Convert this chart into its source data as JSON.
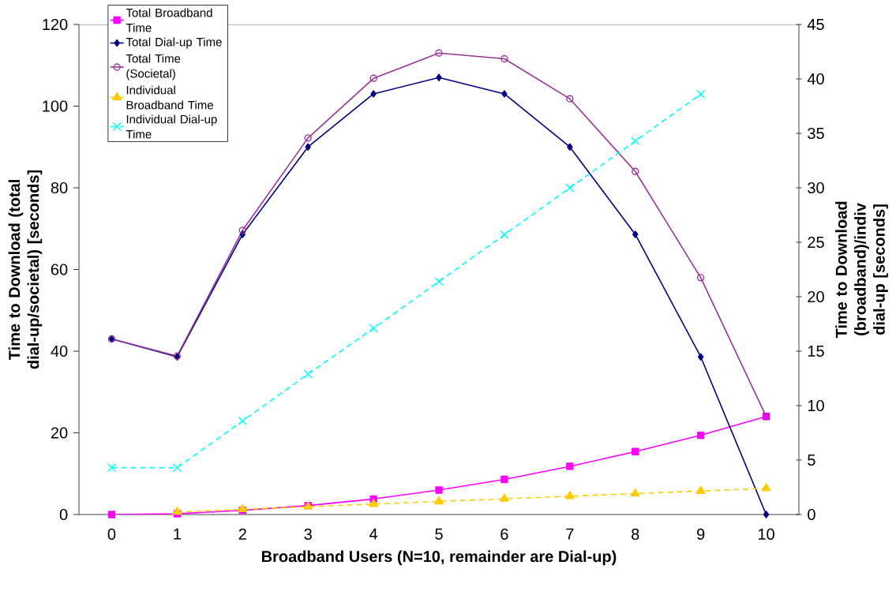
{
  "chart_data": {
    "type": "line",
    "xlabel": "Broadband Users (N=10, remainder are Dial-up)",
    "ylabel": "Time to Download (total dial-up/societal) [seconds]",
    "y2label": "Time to Download (broadband)/indiv dial-up [seconds]",
    "categories": [
      "0",
      "1",
      "2",
      "3",
      "4",
      "5",
      "6",
      "7",
      "8",
      "9",
      "10"
    ],
    "series": [
      {
        "name": "Total Broadband Time",
        "color": "#ff00ff",
        "marker": "square",
        "line_style": "solid",
        "values": [
          0,
          0.2,
          1.0,
          2.2,
          3.8,
          6.0,
          8.6,
          11.8,
          15.4,
          19.4,
          24
        ]
      },
      {
        "name": "Total Dial-up Time",
        "color": "#000080",
        "marker": "diamond",
        "line_style": "solid",
        "values": [
          43,
          38.6,
          68.6,
          90,
          103,
          107,
          103,
          90,
          68.6,
          38.6,
          0
        ]
      },
      {
        "name": "Total Time (Societal)",
        "color": "#993399",
        "marker": "circle",
        "line_style": "solid",
        "values": [
          43,
          38.8,
          69.6,
          92.2,
          106.8,
          113,
          111.6,
          101.8,
          84,
          58,
          24
        ]
      },
      {
        "name": "Individual Broadband Time",
        "color": "#ffcc00",
        "marker": "triangle",
        "line_style": "dashed",
        "axis": "y2",
        "values": [
          null,
          0.24,
          0.48,
          0.72,
          0.96,
          1.2,
          1.44,
          1.68,
          1.92,
          2.16,
          2.4
        ]
      },
      {
        "name": "Individual Dial-up Time",
        "color": "#00ffff",
        "marker": "cross",
        "line_style": "dashed",
        "axis": "y2",
        "values": [
          4.3,
          4.3,
          8.6,
          12.9,
          17.1,
          21.4,
          25.7,
          30,
          34.3,
          38.6,
          null
        ]
      }
    ],
    "ylim": [
      0,
      120
    ],
    "yticks": [
      0,
      20,
      40,
      60,
      80,
      100,
      120
    ],
    "y2lim": [
      0,
      45
    ],
    "y2ticks": [
      0,
      5,
      10,
      15,
      20,
      25,
      30,
      35,
      40,
      45
    ],
    "legend": "top left",
    "grid": false
  }
}
